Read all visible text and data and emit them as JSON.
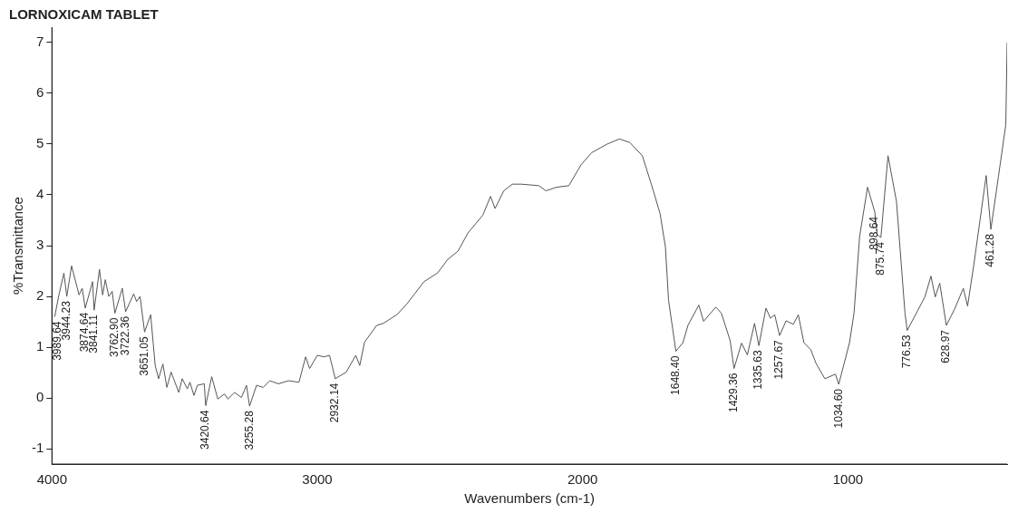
{
  "chart_data": {
    "type": "line",
    "title": "LORNOXICAM TABLET",
    "xlabel": "Wavenumbers (cm-1)",
    "ylabel": "%Transmittance",
    "xlim": [
      4000,
      400
    ],
    "xticks": [
      4000,
      3000,
      2000,
      1000
    ],
    "ylim": [
      -1.3,
      7.3
    ],
    "yticks": [
      -1,
      0,
      1,
      2,
      3,
      4,
      5,
      6,
      7
    ],
    "grid": false,
    "legend": false,
    "marker": "none",
    "line_style": "solid",
    "series": [
      {
        "color": "#555555",
        "x": [
          3989.64,
          3975,
          3955,
          3944.23,
          3926,
          3898,
          3886,
          3874.64,
          3847,
          3841.11,
          3821,
          3809,
          3799,
          3786,
          3773,
          3762.9,
          3735,
          3722.36,
          3692,
          3681,
          3668,
          3651.05,
          3628,
          3611,
          3598,
          3582,
          3567,
          3551,
          3522,
          3509,
          3490,
          3480,
          3465,
          3452,
          3426,
          3420.64,
          3398,
          3375,
          3350,
          3337,
          3312,
          3286,
          3267,
          3255.28,
          3229,
          3204,
          3179,
          3147,
          3108,
          3069,
          3044,
          3029,
          3000,
          2974,
          2954,
          2932.14,
          2891,
          2855,
          2840,
          2822,
          2776,
          2751,
          2700,
          2661,
          2598,
          2547,
          2508,
          2470,
          2432,
          2376,
          2347,
          2330,
          2297,
          2265,
          2231,
          2165,
          2138,
          2098,
          2052,
          2006,
          1966,
          1907,
          1861,
          1822,
          1775,
          1741,
          1708,
          1688,
          1676,
          1648.4,
          1622,
          1603,
          1562,
          1544,
          1498,
          1477,
          1444,
          1429.36,
          1401,
          1379,
          1352,
          1335.63,
          1309,
          1292,
          1276,
          1257.67,
          1233,
          1206,
          1187,
          1166,
          1140,
          1120,
          1087,
          1047,
          1034.6,
          994,
          977,
          956,
          926,
          898.64,
          890,
          875.74,
          849,
          817,
          785,
          776.53,
          710,
          687,
          671,
          654,
          628.97,
          598,
          565,
          549,
          525,
          479,
          461.28,
          433,
          405,
          400
        ],
        "values": [
          1.6,
          2.0,
          2.46,
          2.0,
          2.6,
          2.03,
          2.16,
          1.77,
          2.29,
          1.73,
          2.53,
          2.03,
          2.33,
          2.0,
          2.1,
          1.67,
          2.16,
          1.7,
          2.05,
          1.9,
          2.0,
          1.3,
          1.64,
          0.64,
          0.38,
          0.67,
          0.21,
          0.51,
          0.11,
          0.38,
          0.18,
          0.31,
          0.05,
          0.25,
          0.28,
          -0.15,
          0.42,
          -0.02,
          0.08,
          -0.02,
          0.11,
          0.01,
          0.25,
          -0.16,
          0.25,
          0.21,
          0.34,
          0.28,
          0.34,
          0.31,
          0.81,
          0.58,
          0.84,
          0.81,
          0.84,
          0.38,
          0.51,
          0.84,
          0.64,
          1.1,
          1.43,
          1.47,
          1.64,
          1.86,
          2.29,
          2.46,
          2.73,
          2.89,
          3.25,
          3.6,
          3.97,
          3.73,
          4.08,
          4.21,
          4.21,
          4.18,
          4.08,
          4.15,
          4.18,
          4.59,
          4.83,
          5.0,
          5.1,
          5.03,
          4.77,
          4.21,
          3.63,
          2.98,
          1.92,
          0.92,
          1.09,
          1.43,
          1.83,
          1.51,
          1.79,
          1.67,
          1.13,
          0.58,
          1.08,
          0.85,
          1.47,
          1.03,
          1.77,
          1.57,
          1.64,
          1.23,
          1.52,
          1.45,
          1.64,
          1.09,
          0.95,
          0.68,
          0.38,
          0.47,
          0.27,
          1.09,
          1.67,
          3.18,
          4.15,
          3.66,
          3.22,
          3.16,
          4.77,
          3.87,
          1.67,
          1.33,
          1.99,
          2.4,
          1.99,
          2.26,
          1.43,
          1.75,
          2.16,
          1.81,
          2.64,
          4.38,
          3.32,
          4.35,
          5.38,
          7.0
        ]
      }
    ],
    "annotations": [
      {
        "text": "3989.64",
        "x": 3989.64,
        "y": 1.6
      },
      {
        "text": "3944.23",
        "x": 3944.23,
        "y": 2.0
      },
      {
        "text": "3874.64",
        "x": 3874.64,
        "y": 1.77
      },
      {
        "text": "3841.11",
        "x": 3841.11,
        "y": 1.73
      },
      {
        "text": "3762.90",
        "x": 3762.9,
        "y": 1.67
      },
      {
        "text": "3722.36",
        "x": 3722.36,
        "y": 1.7
      },
      {
        "text": "3651.05",
        "x": 3651.05,
        "y": 1.3
      },
      {
        "text": "3420.64",
        "x": 3420.64,
        "y": -0.15
      },
      {
        "text": "3255.28",
        "x": 3255.28,
        "y": -0.16
      },
      {
        "text": "2932.14",
        "x": 2932.14,
        "y": 0.38
      },
      {
        "text": "1648.40",
        "x": 1648.4,
        "y": 0.92
      },
      {
        "text": "1429.36",
        "x": 1429.36,
        "y": 0.58
      },
      {
        "text": "1335.63",
        "x": 1335.63,
        "y": 1.03
      },
      {
        "text": "1257.67",
        "x": 1257.67,
        "y": 1.23
      },
      {
        "text": "1034.60",
        "x": 1034.6,
        "y": 0.27
      },
      {
        "text": "898.64",
        "x": 898.64,
        "y": 3.66
      },
      {
        "text": "875.74",
        "x": 875.74,
        "y": 3.16
      },
      {
        "text": "776.53",
        "x": 776.53,
        "y": 1.33
      },
      {
        "text": "628.97",
        "x": 628.97,
        "y": 1.43
      },
      {
        "text": "461.28",
        "x": 461.28,
        "y": 3.32
      }
    ]
  }
}
